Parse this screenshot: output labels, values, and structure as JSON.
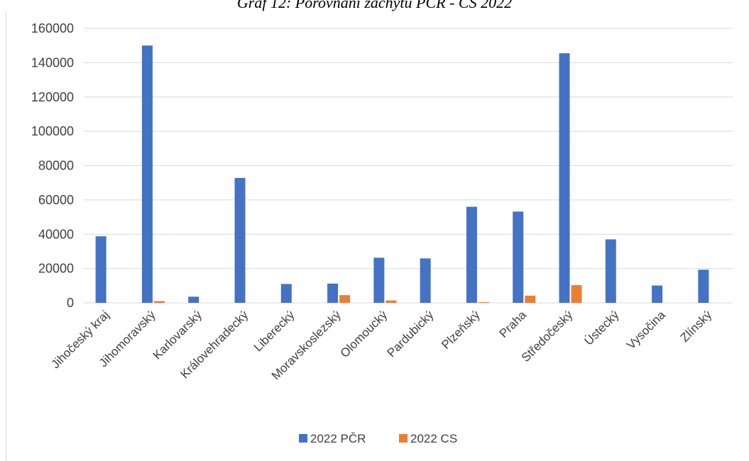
{
  "chart_data": {
    "type": "bar",
    "title": "Graf 12: Porovnání zachytu PČR - CS 2022",
    "categories": [
      "Jihočeský kraj",
      "Jihomoravský",
      "Karlovarský",
      "Královehradecký",
      "Liberecký",
      "Moravskoslezský",
      "Olomoucký",
      "Pardubický",
      "Plzeňský",
      "Praha",
      "Středočeský",
      "Ústecký",
      "Vysočina",
      "Zlínský"
    ],
    "series": [
      {
        "name": "2022 PČR",
        "color": "#4472c4",
        "values": [
          38800,
          150000,
          3600,
          72800,
          11000,
          11200,
          26300,
          25900,
          56000,
          53200,
          145500,
          37000,
          10100,
          19300
        ]
      },
      {
        "name": "2022 CS",
        "color": "#ed7d31",
        "values": [
          0,
          1000,
          0,
          0,
          0,
          4500,
          1400,
          0,
          400,
          4200,
          10300,
          0,
          0,
          0
        ]
      }
    ],
    "yticks": [
      0,
      20000,
      40000,
      60000,
      80000,
      100000,
      120000,
      140000,
      160000
    ],
    "ylim": [
      0,
      160000
    ],
    "grid": true,
    "legend": "bottom"
  }
}
